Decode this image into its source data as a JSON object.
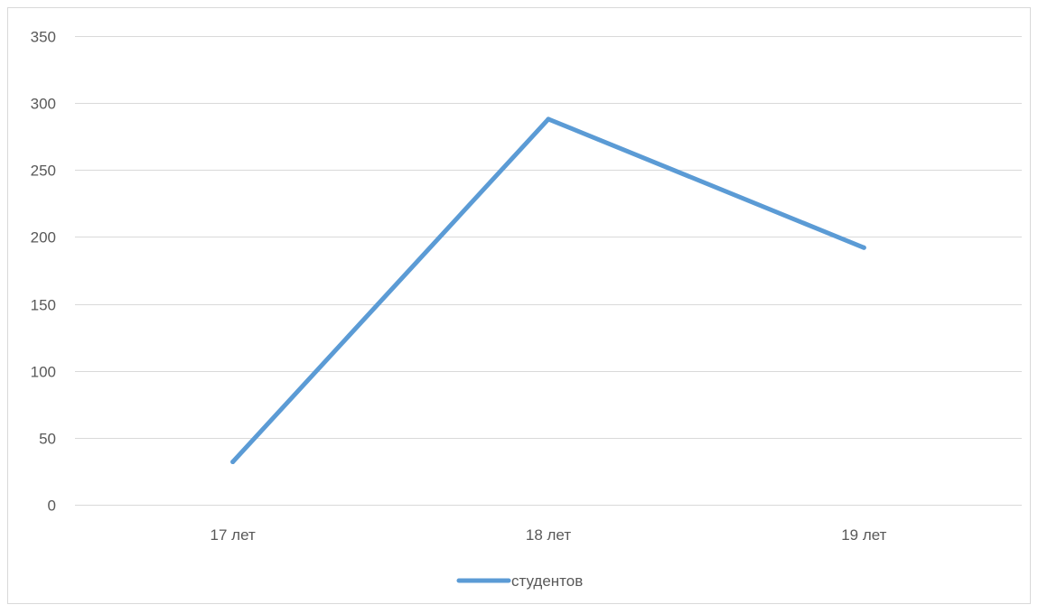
{
  "chart_data": {
    "type": "line",
    "title": "",
    "xlabel": "",
    "ylabel": "",
    "categories": [
      "17 лет",
      "18 лет",
      "19 лет"
    ],
    "series": [
      {
        "name": "студентов",
        "values": [
          32,
          288,
          192
        ],
        "color": "#5B9BD5"
      }
    ],
    "ylim": [
      0,
      350
    ],
    "yticks": [
      0,
      50,
      100,
      150,
      200,
      250,
      300,
      350
    ],
    "grid": true,
    "gridColor": "#D9D9D9",
    "legend": "bottom-center"
  }
}
